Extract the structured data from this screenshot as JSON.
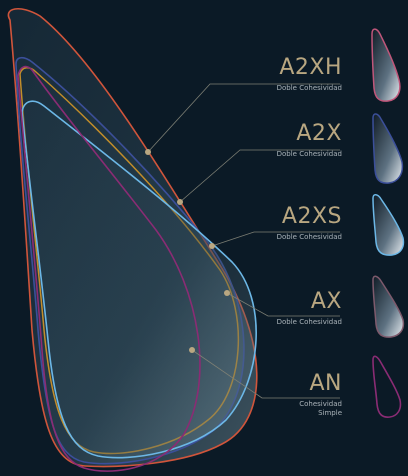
{
  "colors": {
    "background": "#0b1a26",
    "label_text": "#b9a781",
    "subtitle_text": "#aab3b9",
    "leader_line": "#7d7f74"
  },
  "models": [
    {
      "name": "A2XH",
      "subtitle": "Doble Cohesividad",
      "color": "#d0553b"
    },
    {
      "name": "A2X",
      "subtitle": "Doble Cohesividad",
      "color": "#3b4f9a"
    },
    {
      "name": "A2XS",
      "subtitle": "Doble Cohesividad",
      "color": "#6cb7e6"
    },
    {
      "name": "AX",
      "subtitle": "Doble Cohesividad",
      "color": "#c28d2a"
    },
    {
      "name": "AN",
      "subtitle": "Cohesividad Simple",
      "color": "#8a2c74"
    }
  ]
}
